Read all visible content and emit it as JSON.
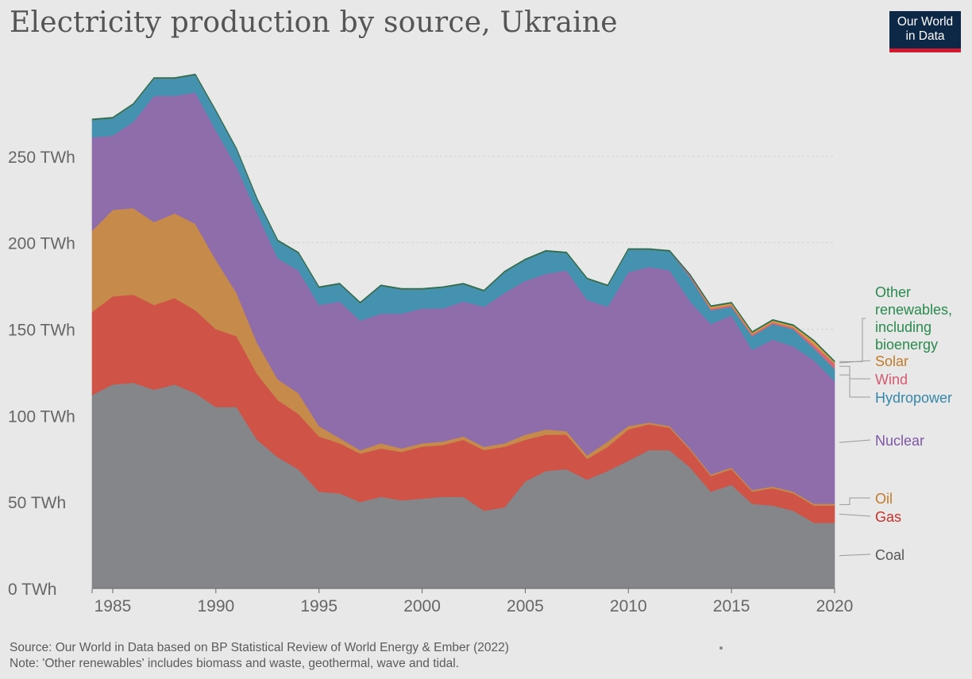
{
  "title": "Electricity production by source, Ukraine",
  "logo": {
    "line1": "Our World",
    "line2": "in Data"
  },
  "footer": {
    "source": "Source: Our World in Data based on BP Statistical Review of World Energy & Ember (2022)",
    "note": "Note: 'Other renewables' includes biomass and waste, geothermal, wave and tidal."
  },
  "colors": {
    "background": "#e8e8e8",
    "Coal": "#85868a",
    "Gas": "#cf5346",
    "Oil": "#c68a4b",
    "Nuclear": "#8f6dab",
    "Hydropower": "#4592b0",
    "Wind": "#d5657a",
    "Solar": "#d39c3e",
    "Other": "#2f6e55"
  },
  "chart_data": {
    "type": "area",
    "stacked": true,
    "title": "Electricity production by source, Ukraine",
    "xlim": [
      1984,
      2020
    ],
    "ylim": [
      0,
      300
    ],
    "yticks": [
      0,
      50,
      100,
      150,
      200,
      250
    ],
    "ytick_labels": [
      "0 TWh",
      "50 TWh",
      "100 TWh",
      "150 TWh",
      "200 TWh",
      "250 TWh"
    ],
    "xticks": [
      1985,
      1990,
      1995,
      2000,
      2005,
      2010,
      2015,
      2020
    ],
    "xtick_labels": [
      "1985",
      "1990",
      "1995",
      "2000",
      "2005",
      "2010",
      "2015",
      "2020"
    ],
    "gridlines": "horizontal dotted",
    "x": [
      1984,
      1985,
      1986,
      1987,
      1988,
      1989,
      1990,
      1991,
      1992,
      1993,
      1994,
      1995,
      1996,
      1997,
      1998,
      1999,
      2000,
      2001,
      2002,
      2003,
      2004,
      2005,
      2006,
      2007,
      2008,
      2009,
      2010,
      2011,
      2012,
      2013,
      2014,
      2015,
      2016,
      2017,
      2018,
      2019,
      2020
    ],
    "series": [
      {
        "name": "Coal",
        "label": "Coal",
        "values": [
          112,
          118,
          119,
          115,
          118,
          113,
          105,
          105,
          86,
          76,
          69,
          56,
          55,
          50,
          53,
          51,
          52,
          53,
          53,
          45,
          47,
          62,
          68,
          69,
          63,
          68,
          74,
          80,
          80,
          70,
          56,
          60,
          49,
          48,
          45,
          38,
          38
        ]
      },
      {
        "name": "Gas",
        "label": "Gas",
        "values": [
          48,
          51,
          51,
          49,
          50,
          48,
          45,
          41,
          38,
          33,
          32,
          32,
          29,
          28,
          28,
          28,
          30,
          30,
          33,
          35,
          35,
          24,
          21,
          20,
          12,
          14,
          18,
          15,
          13,
          10,
          9,
          9,
          7,
          10,
          10,
          10,
          10
        ]
      },
      {
        "name": "Oil",
        "label": "Oil",
        "values": [
          47,
          50,
          50,
          48,
          49,
          50,
          40,
          25,
          18,
          12,
          12,
          6,
          3,
          2,
          3,
          2,
          2,
          2,
          2,
          2,
          2,
          3,
          3,
          2,
          2,
          3,
          2,
          1,
          1,
          1,
          1,
          1,
          1,
          1,
          1,
          1,
          1
        ]
      },
      {
        "name": "Nuclear",
        "label": "Nuclear",
        "values": [
          54,
          43,
          50,
          73,
          68,
          76,
          75,
          73,
          75,
          70,
          71,
          70,
          79,
          75,
          75,
          78,
          78,
          77,
          78,
          81,
          87,
          89,
          90,
          93,
          90,
          78,
          89,
          90,
          90,
          85,
          87,
          88,
          81,
          85,
          84,
          83,
          71
        ]
      },
      {
        "name": "Hydropower",
        "label": "Hydropower",
        "values": [
          10,
          10,
          10,
          10,
          10,
          10,
          11,
          10,
          8,
          10,
          10,
          10,
          10,
          10,
          16,
          14,
          11,
          12,
          10,
          9,
          12,
          12,
          13,
          10,
          12,
          12,
          13,
          10,
          11,
          14,
          8,
          5,
          8,
          9,
          10,
          7,
          7
        ]
      },
      {
        "name": "Wind",
        "label": "Wind",
        "values": [
          0,
          0,
          0,
          0,
          0,
          0,
          0,
          0,
          0,
          0,
          0,
          0,
          0,
          0,
          0,
          0,
          0,
          0,
          0,
          0,
          0,
          0,
          0,
          0,
          0,
          0,
          0,
          0,
          0,
          1,
          1,
          1,
          1,
          1,
          1,
          2,
          3
        ]
      },
      {
        "name": "Solar",
        "label": "Solar",
        "values": [
          0,
          0,
          0,
          0,
          0,
          0,
          0,
          0,
          0,
          0,
          0,
          0,
          0,
          0,
          0,
          0,
          0,
          0,
          0,
          0,
          0,
          0,
          0,
          0,
          0,
          0,
          0,
          0,
          0,
          0,
          1,
          1,
          1,
          1,
          1,
          2,
          1
        ]
      },
      {
        "name": "Other renewables, including bioenergy",
        "label": "Other renewables, including bioenergy",
        "values": [
          0.5,
          0.5,
          0.5,
          0.5,
          0.5,
          0.5,
          0.5,
          0.5,
          0.5,
          0.5,
          0.5,
          0.5,
          0.5,
          0.5,
          0.5,
          0.5,
          0.5,
          0.5,
          0.5,
          0.5,
          0.5,
          0.5,
          0.5,
          0.5,
          0.5,
          0.5,
          0.5,
          0.5,
          0.5,
          0.5,
          0.5,
          0.5,
          0.5,
          0.5,
          0.5,
          0.5,
          0.5
        ]
      }
    ],
    "legend": {
      "placement": "right, inline at series end",
      "entries": [
        {
          "label": "Other renewables, including bioenergy",
          "color": "#2a8a4e"
        },
        {
          "label": "Solar",
          "color": "#c27a2a"
        },
        {
          "label": "Wind",
          "color": "#d45a70"
        },
        {
          "label": "Hydropower",
          "color": "#3587a8"
        },
        {
          "label": "Nuclear",
          "color": "#7e57a6"
        },
        {
          "label": "Oil",
          "color": "#c27a2a"
        },
        {
          "label": "Gas",
          "color": "#c9302b"
        },
        {
          "label": "Coal",
          "color": "#555555"
        }
      ]
    }
  }
}
